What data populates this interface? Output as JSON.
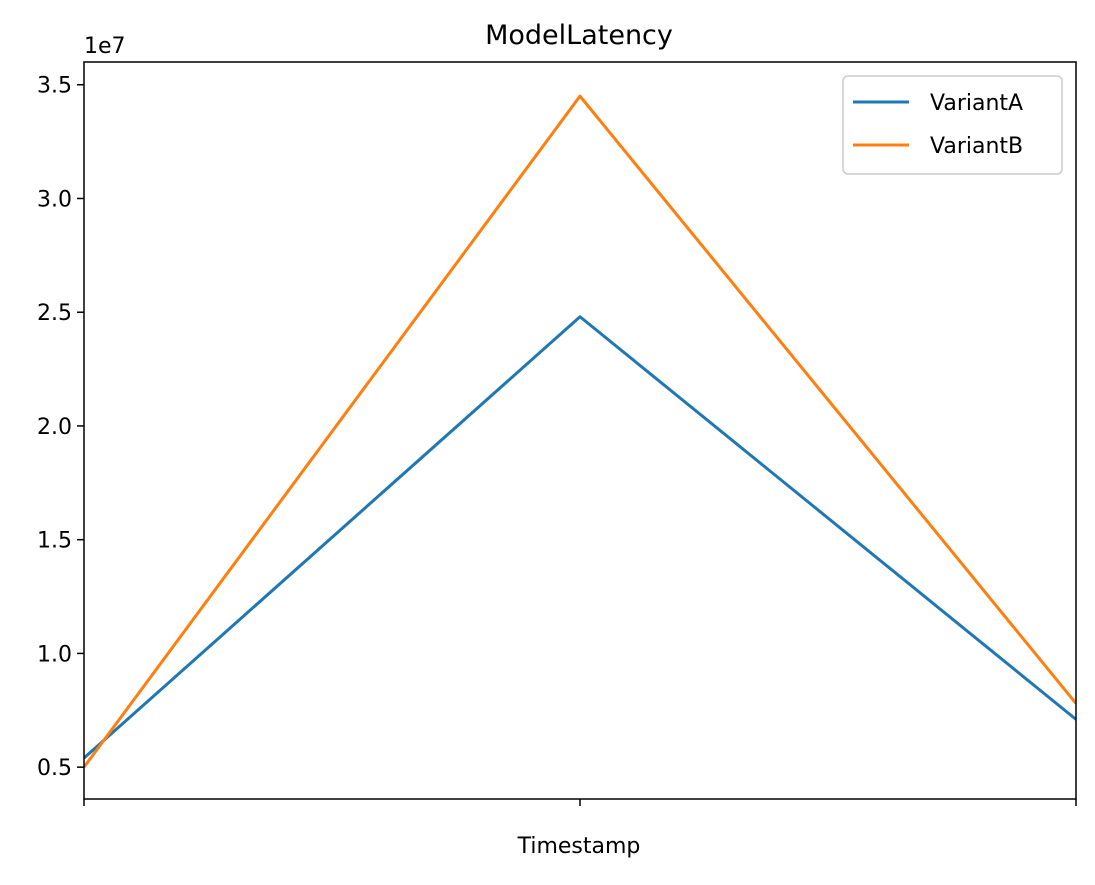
{
  "chart_data": {
    "type": "line",
    "title": "ModelLatency",
    "xlabel": "Timestamp",
    "ylabel": "",
    "y_offset_label": "1e7",
    "y_scale": 10000000,
    "x": [
      0,
      1,
      2
    ],
    "xlim": [
      0,
      2
    ],
    "ylim": [
      3.6,
      36.0
    ],
    "yticks": [
      5,
      10,
      15,
      20,
      25,
      30,
      35
    ],
    "ytick_labels": [
      "0.5",
      "1.0",
      "1.5",
      "2.0",
      "2.5",
      "3.0",
      "3.5"
    ],
    "xtick_labels": [
      "",
      "",
      ""
    ],
    "grid": false,
    "legend_position": "top-right",
    "series": [
      {
        "name": "VariantA",
        "color": "#1f77b4",
        "values": [
          5.4,
          24.8,
          7.1
        ]
      },
      {
        "name": "VariantB",
        "color": "#ff7f0e",
        "values": [
          5.0,
          34.5,
          7.8
        ]
      }
    ]
  }
}
